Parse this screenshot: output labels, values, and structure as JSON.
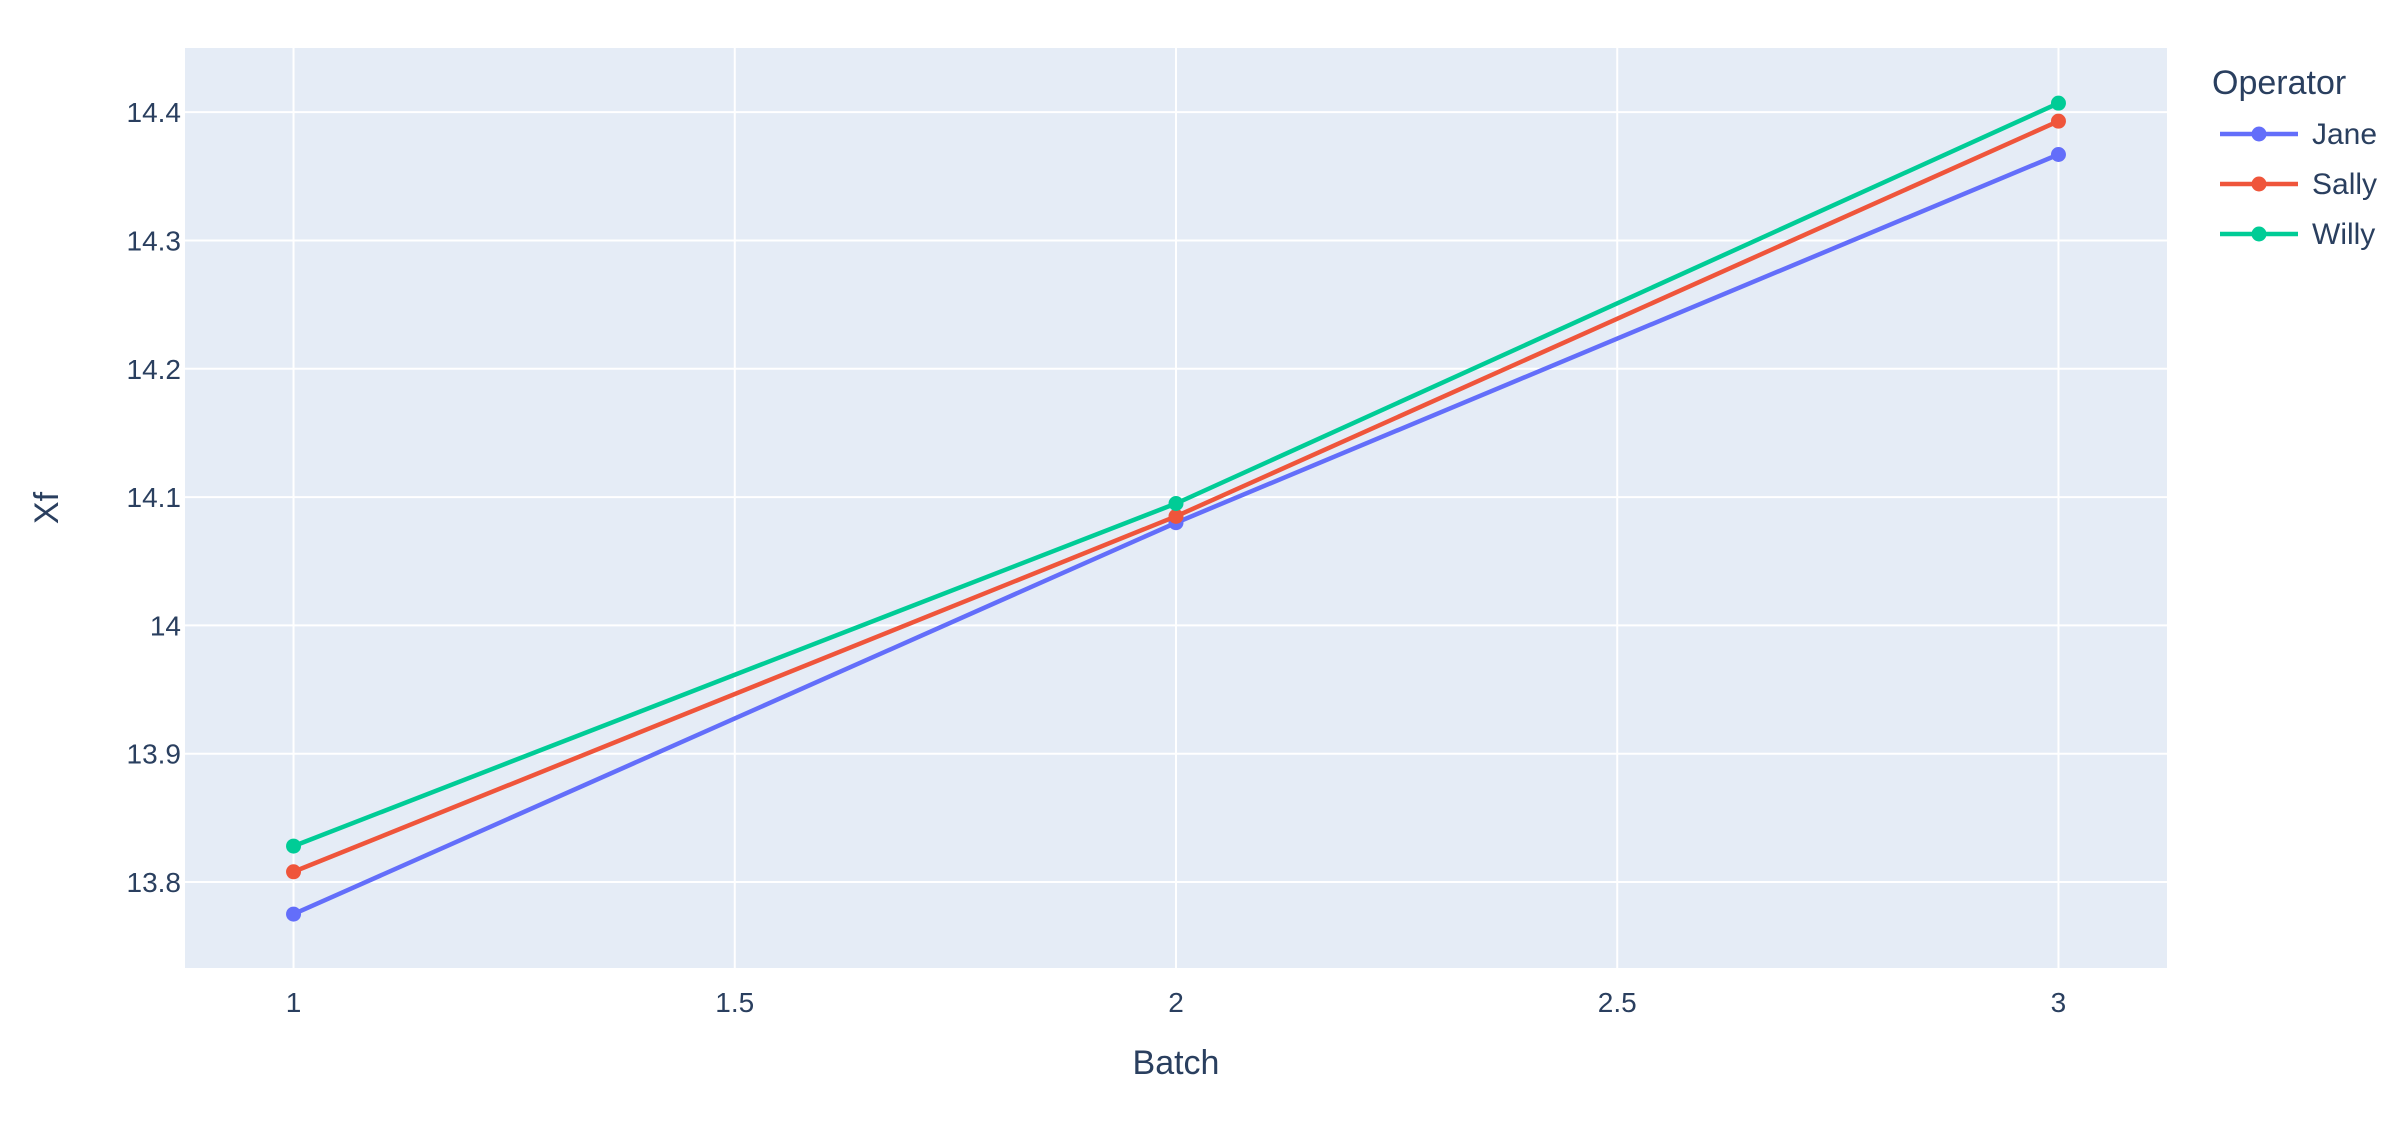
{
  "chart_data": {
    "type": "line",
    "x": [
      1,
      2,
      3
    ],
    "series": [
      {
        "name": "Jane",
        "color": "#636efa",
        "values": [
          13.775,
          14.08,
          14.367
        ]
      },
      {
        "name": "Sally",
        "color": "#ef553b",
        "values": [
          13.808,
          14.085,
          14.393
        ]
      },
      {
        "name": "Willy",
        "color": "#00cc96",
        "values": [
          13.828,
          14.095,
          14.407
        ]
      }
    ],
    "xlabel": "Batch",
    "ylabel": "Xf",
    "legend_title": "Operator",
    "legend_position": "top-right, outside plot",
    "xlim": [
      0.877,
      3.123
    ],
    "ylim": [
      13.733,
      14.45
    ],
    "x_ticks": [
      1,
      1.5,
      2,
      2.5,
      3
    ],
    "x_tick_labels": [
      "1",
      "1.5",
      "2",
      "2.5",
      "3"
    ],
    "y_ticks": [
      13.8,
      13.9,
      14,
      14.1,
      14.2,
      14.3,
      14.4
    ],
    "y_tick_labels": [
      "13.8",
      "13.9",
      "14",
      "14.1",
      "14.2",
      "14.3",
      "14.4"
    ],
    "grid": true,
    "markers": true,
    "plot_background": "#e5ecf6",
    "grid_color": "#ffffff",
    "text_color": "#2a3f5f"
  }
}
